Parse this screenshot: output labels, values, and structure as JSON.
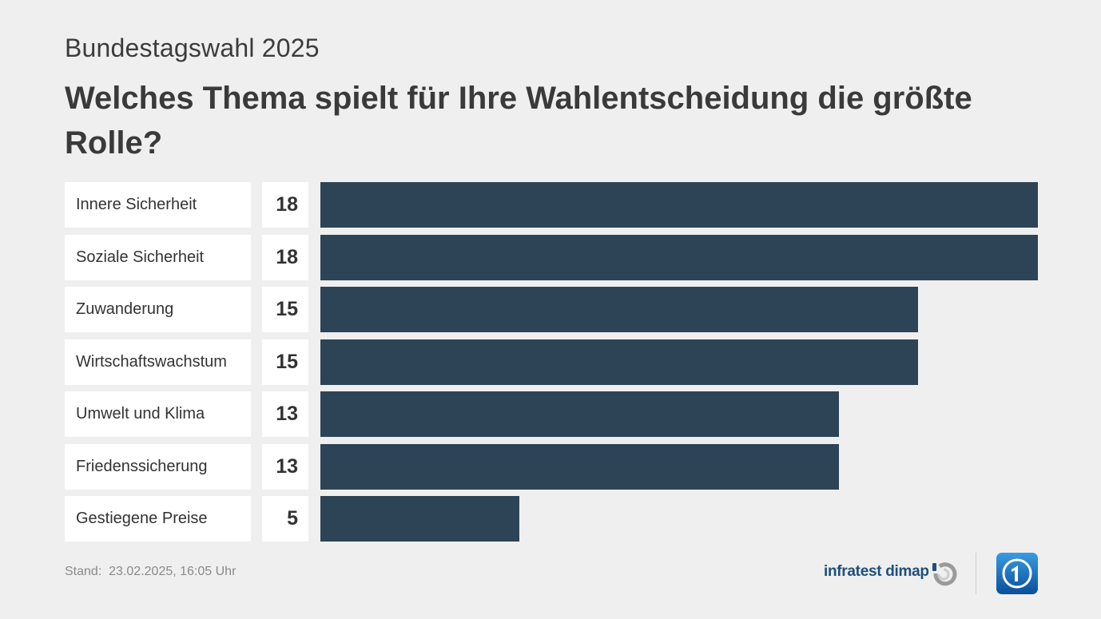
{
  "header": {
    "supertitle": "Bundestagswahl 2025",
    "title": "Welches Thema spielt für Ihre Wahlentscheidung die größte Rolle?"
  },
  "chart_data": {
    "type": "bar",
    "orientation": "horizontal",
    "categories": [
      "Innere Sicherheit",
      "Soziale Sicherheit",
      "Zuwanderung",
      "Wirtschaftswachstum",
      "Umwelt und Klima",
      "Friedenssicherung",
      "Gestiegene Preise"
    ],
    "values": [
      18,
      18,
      15,
      15,
      13,
      13,
      5
    ],
    "value_labels": [
      "18",
      "18",
      "15",
      "15",
      "13",
      "13",
      "5"
    ],
    "title": "Welches Thema spielt für Ihre Wahlentscheidung die größte Rolle?",
    "xlim": [
      0,
      18
    ],
    "grid": false,
    "bar_color": "#2c4455"
  },
  "footer": {
    "date_label": "Stand:",
    "date_value": "23.02.2025, 16:05 Uhr",
    "brand": "infratest dimap",
    "brand_icon": "infratest-dimap-logo-icon",
    "logo_icon": "ard-logo-icon"
  },
  "colors": {
    "background": "#efefef",
    "bar": "#2c4455",
    "brand": "#1f4f7a",
    "logo": "#0a6fc2"
  }
}
